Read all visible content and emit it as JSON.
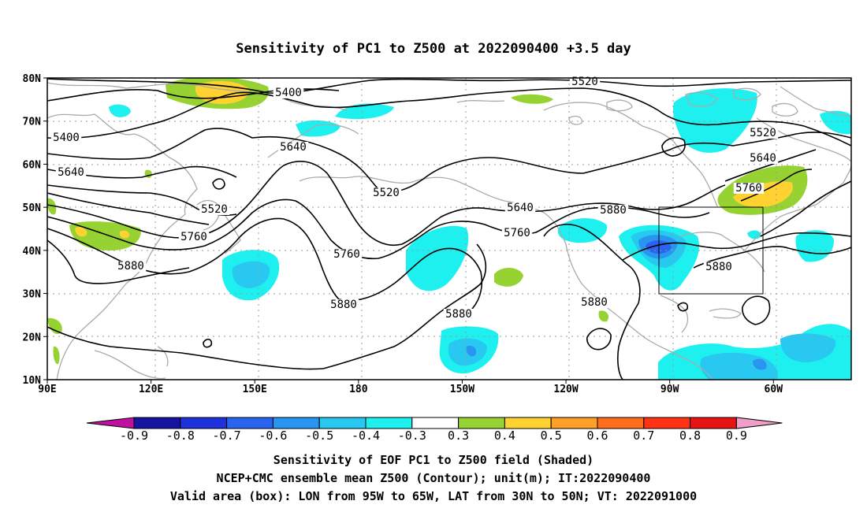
{
  "title": "Sensitivity of PC1 to Z500 at 2022090400 +3.5 day",
  "lat_labels": [
    "80N",
    "70N",
    "60N",
    "50N",
    "40N",
    "30N",
    "20N",
    "10N"
  ],
  "lon_labels": [
    "90E",
    "120E",
    "150E",
    "180",
    "150W",
    "120W",
    "90W",
    "60W"
  ],
  "contour_labels": [
    "5400",
    "5400",
    "5520",
    "5520",
    "5520",
    "5520",
    "5640",
    "5640",
    "5640",
    "5640",
    "5760",
    "5760",
    "5760",
    "5760",
    "5880",
    "5880",
    "5880",
    "5880",
    "5880",
    "5880"
  ],
  "colorbar": {
    "labels": [
      "-0.9",
      "-0.8",
      "-0.7",
      "-0.6",
      "-0.5",
      "-0.4",
      "-0.3",
      "0.3",
      "0.4",
      "0.5",
      "0.6",
      "0.7",
      "0.8",
      "0.9"
    ],
    "colors": [
      "#c010a0",
      "#1414a0",
      "#1e32dc",
      "#2864f0",
      "#2896f0",
      "#28c8f0",
      "#1ef0f0",
      "#ffffff",
      "#96d232",
      "#ffd232",
      "#ffa028",
      "#ff6e1e",
      "#ff3214",
      "#e61414",
      "#f0a0c8"
    ]
  },
  "caption": {
    "line1": "Sensitivity of EOF PC1 to Z500 field (Shaded)",
    "line2": "NCEP+CMC ensemble mean Z500 (Contour); unit(m); IT:2022090400",
    "line3": "Valid area (box): LON from 95W to 65W, LAT from 30N to 50N; VT: 2022091000"
  }
}
